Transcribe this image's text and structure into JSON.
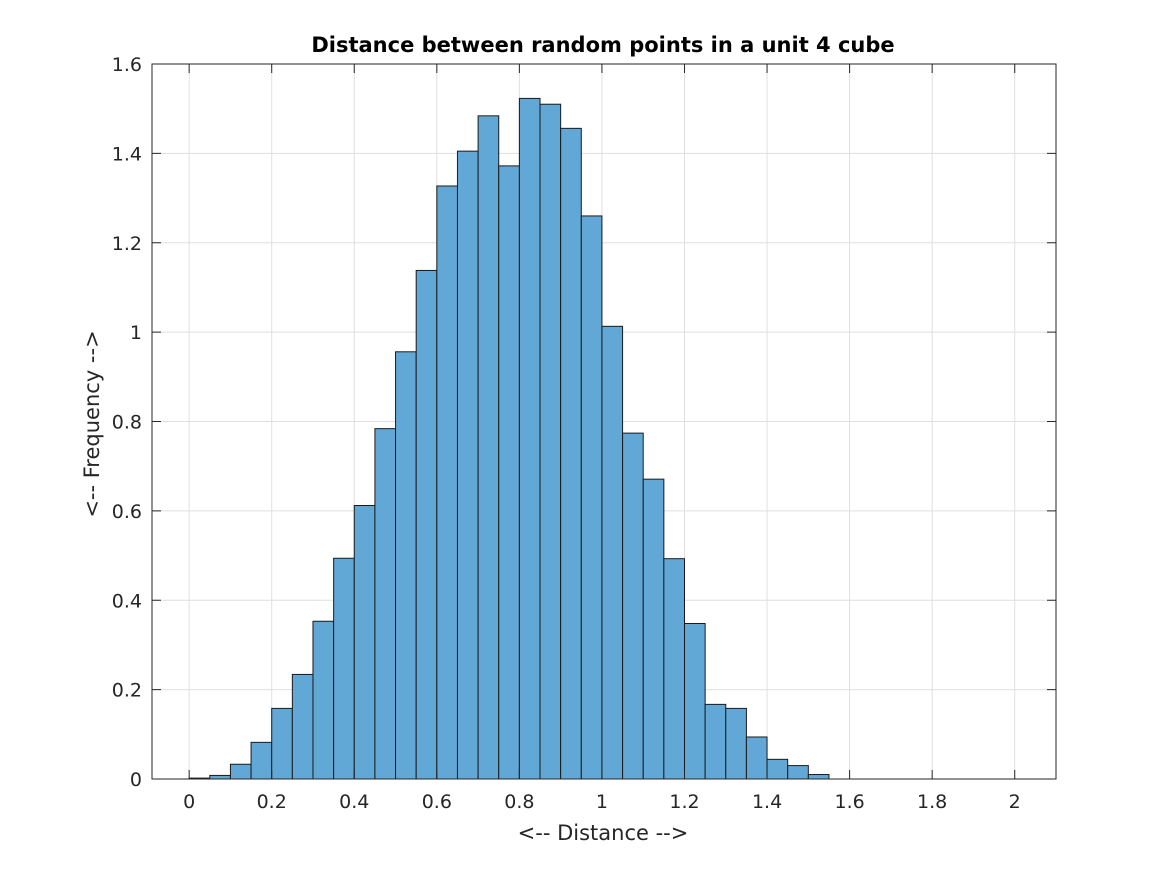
{
  "chart_data": {
    "type": "bar",
    "title": "Distance between random points in a unit 4 cube",
    "xlabel": "<-- Distance -->",
    "ylabel": "<-- Frequency -->",
    "xlim": [
      -0.09,
      2.1
    ],
    "ylim": [
      0,
      1.6
    ],
    "xticks": [
      0,
      0.2,
      0.4,
      0.6,
      0.8,
      1,
      1.2,
      1.4,
      1.6,
      1.8,
      2
    ],
    "xtick_labels": [
      "0",
      "0.2",
      "0.4",
      "0.6",
      "0.8",
      "1",
      "1.2",
      "1.4",
      "1.6",
      "1.8",
      "2"
    ],
    "yticks": [
      0,
      0.2,
      0.4,
      0.6,
      0.8,
      1,
      1.2,
      1.4,
      1.6
    ],
    "ytick_labels": [
      "0",
      "0.2",
      "0.4",
      "0.6",
      "0.8",
      "1",
      "1.2",
      "1.4",
      "1.6"
    ],
    "grid": true,
    "bin_width": 0.05,
    "bin_edges_start": 0,
    "values": [
      0.002,
      0.008,
      0.033,
      0.082,
      0.158,
      0.234,
      0.353,
      0.494,
      0.612,
      0.784,
      0.956,
      1.138,
      1.327,
      1.405,
      1.484,
      1.372,
      1.523,
      1.51,
      1.456,
      1.26,
      1.013,
      0.774,
      0.671,
      0.493,
      0.348,
      0.167,
      0.158,
      0.094,
      0.044,
      0.03,
      0.01
    ],
    "bar_color": "#62a8d7",
    "edge_color": "#1a1a1a"
  }
}
